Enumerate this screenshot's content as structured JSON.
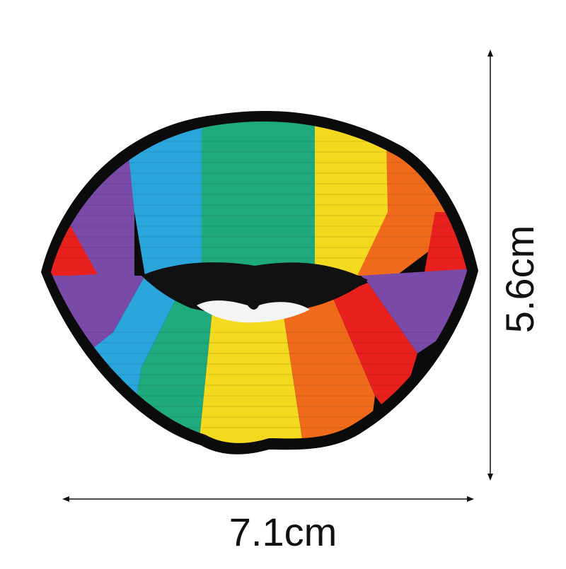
{
  "product": {
    "name_icon": "rainbow-lips-patch",
    "colors": {
      "outline": "#0b0b0b",
      "red": "#e8201e",
      "orange": "#f06a1c",
      "yellow": "#f4da1e",
      "green": "#1faa7e",
      "blue": "#2aa6dc",
      "purple": "#7a4aa8",
      "mouth": "#111111",
      "teeth": "#f4f4f4"
    }
  },
  "dimensions": {
    "width_label": "7.1cm",
    "height_label": "5.6cm"
  }
}
